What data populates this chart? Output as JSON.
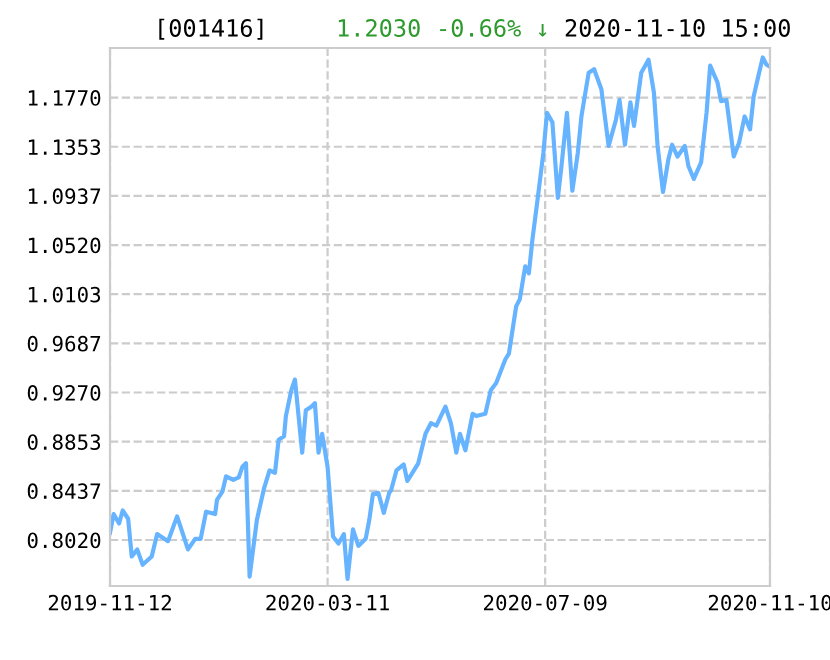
{
  "chart_data": {
    "type": "line",
    "title": "[001416]",
    "annotations": [
      "1.2030",
      "-0.66% ↓",
      "2020-11-10 15:00"
    ],
    "x": [
      "2019-11-12",
      "2019-11-14",
      "2019-11-17",
      "2019-11-19",
      "2019-11-22",
      "2019-11-24",
      "2019-11-27",
      "2019-11-30",
      "2019-12-05",
      "2019-12-08",
      "2019-12-14",
      "2019-12-19",
      "2019-12-25",
      "2019-12-29",
      "2020-01-01",
      "2020-01-04",
      "2020-01-09",
      "2020-01-10",
      "2020-01-13",
      "2020-01-15",
      "2020-01-19",
      "2020-01-22",
      "2020-01-24",
      "2020-01-26",
      "2020-01-28",
      "2020-02-01",
      "2020-02-05",
      "2020-02-08",
      "2020-02-11",
      "2020-02-13",
      "2020-02-16",
      "2020-02-17",
      "2020-02-20",
      "2020-02-22",
      "2020-02-24",
      "2020-02-26",
      "2020-02-28",
      "2020-03-02",
      "2020-03-04",
      "2020-03-06",
      "2020-03-08",
      "2020-03-11",
      "2020-03-14",
      "2020-03-17",
      "2020-03-20",
      "2020-03-22",
      "2020-03-25",
      "2020-03-28",
      "2020-04-01",
      "2020-04-03",
      "2020-04-05",
      "2020-04-08",
      "2020-04-11",
      "2020-04-14",
      "2020-04-15",
      "2020-04-18",
      "2020-04-22",
      "2020-04-24",
      "2020-04-30",
      "2020-05-04",
      "2020-05-07",
      "2020-05-10",
      "2020-05-15",
      "2020-05-18",
      "2020-05-21",
      "2020-05-23",
      "2020-05-26",
      "2020-05-30",
      "2020-06-01",
      "2020-06-06",
      "2020-06-09",
      "2020-06-12",
      "2020-06-17",
      "2020-06-19",
      "2020-06-23",
      "2020-06-25",
      "2020-06-28",
      "2020-06-30",
      "2020-07-02",
      "2020-07-05",
      "2020-07-08",
      "2020-07-10",
      "2020-07-13",
      "2020-07-16",
      "2020-07-18",
      "2020-07-21",
      "2020-07-24",
      "2020-07-27",
      "2020-07-29",
      "2020-08-02",
      "2020-08-05",
      "2020-08-09",
      "2020-08-13",
      "2020-08-17",
      "2020-08-19",
      "2020-08-22",
      "2020-08-25",
      "2020-08-27",
      "2020-08-31",
      "2020-09-04",
      "2020-09-07",
      "2020-09-09",
      "2020-09-12",
      "2020-09-15",
      "2020-09-17",
      "2020-09-20",
      "2020-09-24",
      "2020-09-26",
      "2020-09-29",
      "2020-10-03",
      "2020-10-06",
      "2020-10-08",
      "2020-10-12",
      "2020-10-14",
      "2020-10-17",
      "2020-10-21",
      "2020-10-24",
      "2020-10-27",
      "2020-10-30",
      "2020-11-01",
      "2020-11-04",
      "2020-11-06",
      "2020-11-08",
      "2020-11-10"
    ],
    "series": [
      {
        "color": "#66b3ff",
        "values": [
          0.808,
          0.824,
          0.816,
          0.827,
          0.82,
          0.788,
          0.794,
          0.781,
          0.788,
          0.807,
          0.801,
          0.822,
          0.794,
          0.803,
          0.803,
          0.826,
          0.824,
          0.836,
          0.843,
          0.856,
          0.853,
          0.855,
          0.864,
          0.867,
          0.771,
          0.819,
          0.846,
          0.861,
          0.859,
          0.887,
          0.89,
          0.907,
          0.929,
          0.938,
          0.907,
          0.876,
          0.912,
          0.915,
          0.918,
          0.876,
          0.892,
          0.864,
          0.805,
          0.799,
          0.807,
          0.769,
          0.811,
          0.797,
          0.803,
          0.819,
          0.841,
          0.842,
          0.825,
          0.842,
          0.844,
          0.861,
          0.866,
          0.852,
          0.867,
          0.892,
          0.901,
          0.899,
          0.915,
          0.901,
          0.876,
          0.892,
          0.878,
          0.909,
          0.907,
          0.909,
          0.929,
          0.935,
          0.955,
          0.96,
          1.0,
          1.006,
          1.034,
          1.028,
          1.057,
          1.093,
          1.13,
          1.164,
          1.156,
          1.092,
          1.119,
          1.164,
          1.098,
          1.13,
          1.161,
          1.198,
          1.201,
          1.184,
          1.136,
          1.158,
          1.175,
          1.137,
          1.173,
          1.153,
          1.198,
          1.209,
          1.181,
          1.136,
          1.097,
          1.125,
          1.137,
          1.127,
          1.136,
          1.119,
          1.108,
          1.122,
          1.164,
          1.204,
          1.19,
          1.174,
          1.175,
          1.127,
          1.139,
          1.161,
          1.15,
          1.178,
          1.198,
          1.211,
          1.205,
          1.203
        ]
      }
    ],
    "xlim": [
      "2019-11-12",
      "2020-11-10"
    ],
    "xticks": [
      {
        "value": "2019-11-12",
        "label": "2019-11-12"
      },
      {
        "value": "2020-03-11",
        "label": "2020-03-11"
      },
      {
        "value": "2020-07-09",
        "label": "2020-07-09"
      },
      {
        "value": "2020-11-10",
        "label": "2020-11-10"
      }
    ],
    "ylim": [
      0.763,
      1.219
    ],
    "yticks": [
      {
        "value": 0.802,
        "label": "0.8020"
      },
      {
        "value": 0.8437,
        "label": "0.8437"
      },
      {
        "value": 0.8853,
        "label": "0.8853"
      },
      {
        "value": 0.927,
        "label": "0.9270"
      },
      {
        "value": 0.9687,
        "label": "0.9687"
      },
      {
        "value": 1.0103,
        "label": "1.0103"
      },
      {
        "value": 1.052,
        "label": "1.0520"
      },
      {
        "value": 1.0937,
        "label": "1.0937"
      },
      {
        "value": 1.1353,
        "label": "1.1353"
      },
      {
        "value": 1.177,
        "label": "1.1770"
      }
    ],
    "grid": true,
    "line_style": "solid",
    "marker": "none"
  }
}
